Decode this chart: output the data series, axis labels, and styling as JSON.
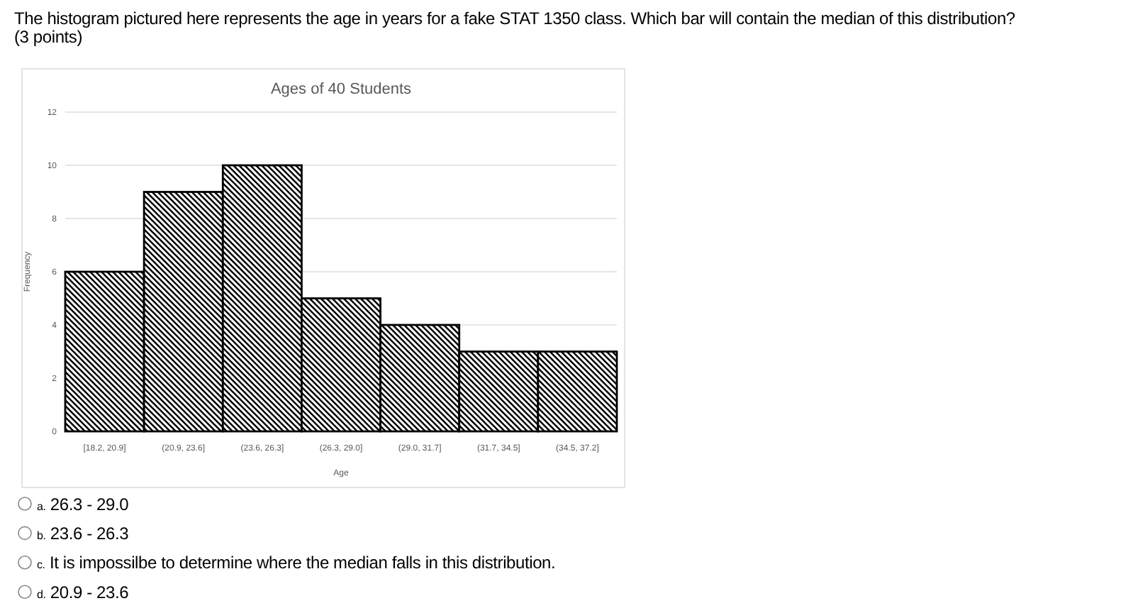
{
  "chart_data": {
    "type": "bar",
    "title": "Ages of 40 Students",
    "xlabel": "Age",
    "ylabel": "Frequency",
    "categories": [
      "[18.2, 20.9]",
      "(20.9, 23.6]",
      "(23.6, 26.3]",
      "(26.3, 29.0]",
      "(29.0, 31.7]",
      "(31.7, 34.5]",
      "(34.5, 37.2]"
    ],
    "values": [
      6,
      9,
      10,
      5,
      4,
      3,
      3
    ],
    "color": "#000000",
    "ylim": [
      0,
      12
    ],
    "yticks": [
      0,
      2,
      4,
      6,
      8,
      10,
      12
    ],
    "grid": "y",
    "annotations": [
      "The histogram pictured here represents the age in years for a fake STAT 1350 class. Which bar will contain the median of this distribution?",
      "(3 points)",
      "a. 26.3 - 29.0",
      "b. 23.6 - 26.3",
      "c. It is impossilbe to determine where the median falls in this distribution.",
      "d. 20.9 - 23.6"
    ]
  }
}
